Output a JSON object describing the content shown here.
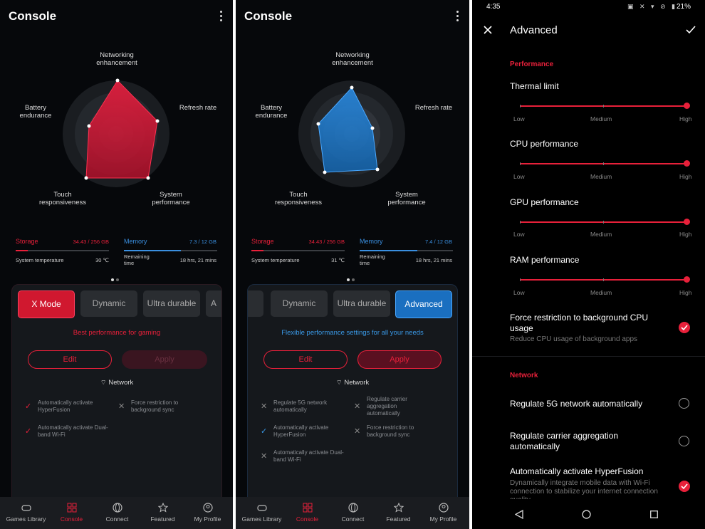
{
  "panel1": {
    "title": "Console",
    "radar": {
      "labels": {
        "top": "Networking\nenhancement",
        "right": "Refresh rate",
        "left": "Battery\nendurance",
        "bottom_left": "Touch\nresponsiveness",
        "bottom_right": "System\nperformance"
      },
      "color": "#d81b3a"
    },
    "storage": {
      "label": "Storage",
      "value": "34.43 / 256 GB",
      "fraction": 0.13
    },
    "memory": {
      "label": "Memory",
      "value": "7.3 / 12 GB",
      "fraction": 0.61
    },
    "temp": {
      "label": "System temperature",
      "value": "30 ℃"
    },
    "remaining": {
      "label": "Remaining\ntime",
      "value": "18 hrs, 21 mins"
    },
    "modes": [
      "X Mode",
      "Dynamic",
      "Ultra durable",
      "A"
    ],
    "tagline": "Best performance for gaming",
    "edit": "Edit",
    "apply": "Apply",
    "network": "Network",
    "features": [
      {
        "text": "Automatically activate HyperFusion",
        "on": true
      },
      {
        "text": "Force restriction to background sync",
        "on": false
      },
      {
        "text": "Automatically activate Dual-band Wi-Fi",
        "on": true
      }
    ]
  },
  "panel2": {
    "title": "Console",
    "radar": {
      "labels": {
        "top": "Networking\nenhancement",
        "right": "Refresh rate",
        "left": "Battery\nendurance",
        "bottom_left": "Touch\nresponsiveness",
        "bottom_right": "System\nperformance"
      },
      "color": "#1e78c8"
    },
    "storage": {
      "label": "Storage",
      "value": "34.43 / 256 GB",
      "fraction": 0.13
    },
    "memory": {
      "label": "Memory",
      "value": "7.4 / 12 GB",
      "fraction": 0.62
    },
    "temp": {
      "label": "System temperature",
      "value": "31 ℃"
    },
    "remaining": {
      "label": "Remaining\ntime",
      "value": "18 hrs, 21 mins"
    },
    "modes": [
      "Dynamic",
      "Ultra durable",
      "Advanced"
    ],
    "tagline": "Flexible performance settings for all your needs",
    "edit": "Edit",
    "apply": "Apply",
    "network": "Network",
    "features": [
      {
        "text": "Regulate 5G network automatically",
        "on": false
      },
      {
        "text": "Regulate carrier aggregation automatically",
        "on": false
      },
      {
        "text": "Automatically activate HyperFusion",
        "on": true
      },
      {
        "text": "Force restriction to background sync",
        "on": false
      },
      {
        "text": "Automatically activate Dual-band Wi-Fi",
        "on": false
      }
    ]
  },
  "nav": [
    "Games Library",
    "Console",
    "Connect",
    "Featured",
    "My Profile"
  ],
  "panel3": {
    "status_time": "4:35",
    "battery": "21%",
    "title": "Advanced",
    "performance_header": "Performance",
    "sliders": [
      {
        "label": "Thermal limit",
        "level": "High"
      },
      {
        "label": "CPU performance",
        "level": "High"
      },
      {
        "label": "GPU performance",
        "level": "High"
      },
      {
        "label": "RAM performance",
        "level": "High"
      }
    ],
    "slider_levels": [
      "Low",
      "Medium",
      "High"
    ],
    "force_cpu": {
      "label": "Force restriction to background CPU usage",
      "sub": "Reduce CPU usage of background apps",
      "checked": true
    },
    "network_header": "Network",
    "net_opts": [
      {
        "label": "Regulate 5G network automatically",
        "checked": false
      },
      {
        "label": "Regulate carrier aggregation automatically",
        "checked": false
      },
      {
        "label": "Automatically activate HyperFusion",
        "sub": "Dynamically integrate mobile data with Wi-Fi connection to stabilize your internet connection quality",
        "checked": true
      }
    ]
  }
}
